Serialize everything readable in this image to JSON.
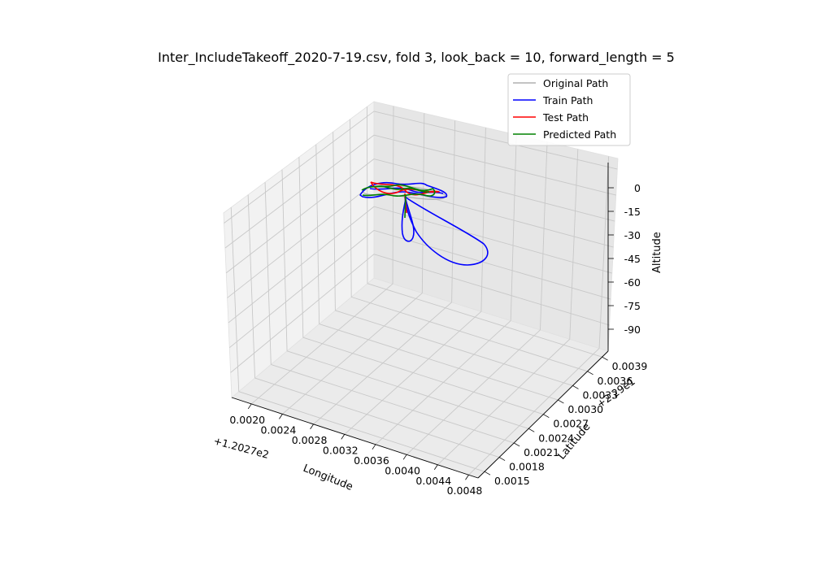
{
  "chart_data": {
    "type": "line3d",
    "title": "Inter_IncludeTakeoff_2020-7-19.csv, fold 3, look_back = 10, forward_length = 5",
    "xlabel": "Longitude",
    "ylabel": "Latitude",
    "zlabel": "Altitude",
    "x_offset_label": "+1.2027e2",
    "y_offset_label": "+2.29e1",
    "x_ticks": [
      "0.0020",
      "0.0024",
      "0.0028",
      "0.0032",
      "0.0036",
      "0.0040",
      "0.0044",
      "0.0048"
    ],
    "y_ticks": [
      "0.0015",
      "0.0018",
      "0.0021",
      "0.0024",
      "0.0027",
      "0.0030",
      "0.0033",
      "0.0036",
      "0.0039"
    ],
    "z_ticks": [
      "0",
      "-15",
      "-30",
      "-45",
      "-60",
      "-75",
      "-90"
    ],
    "legend_position": "top-right",
    "grid": true,
    "series": [
      {
        "name": "Original Path",
        "color": "#b0b0b0"
      },
      {
        "name": "Train Path",
        "color": "#0000ff"
      },
      {
        "name": "Test Path",
        "color": "#ff0000"
      },
      {
        "name": "Predicted Path",
        "color": "#008000"
      }
    ]
  }
}
